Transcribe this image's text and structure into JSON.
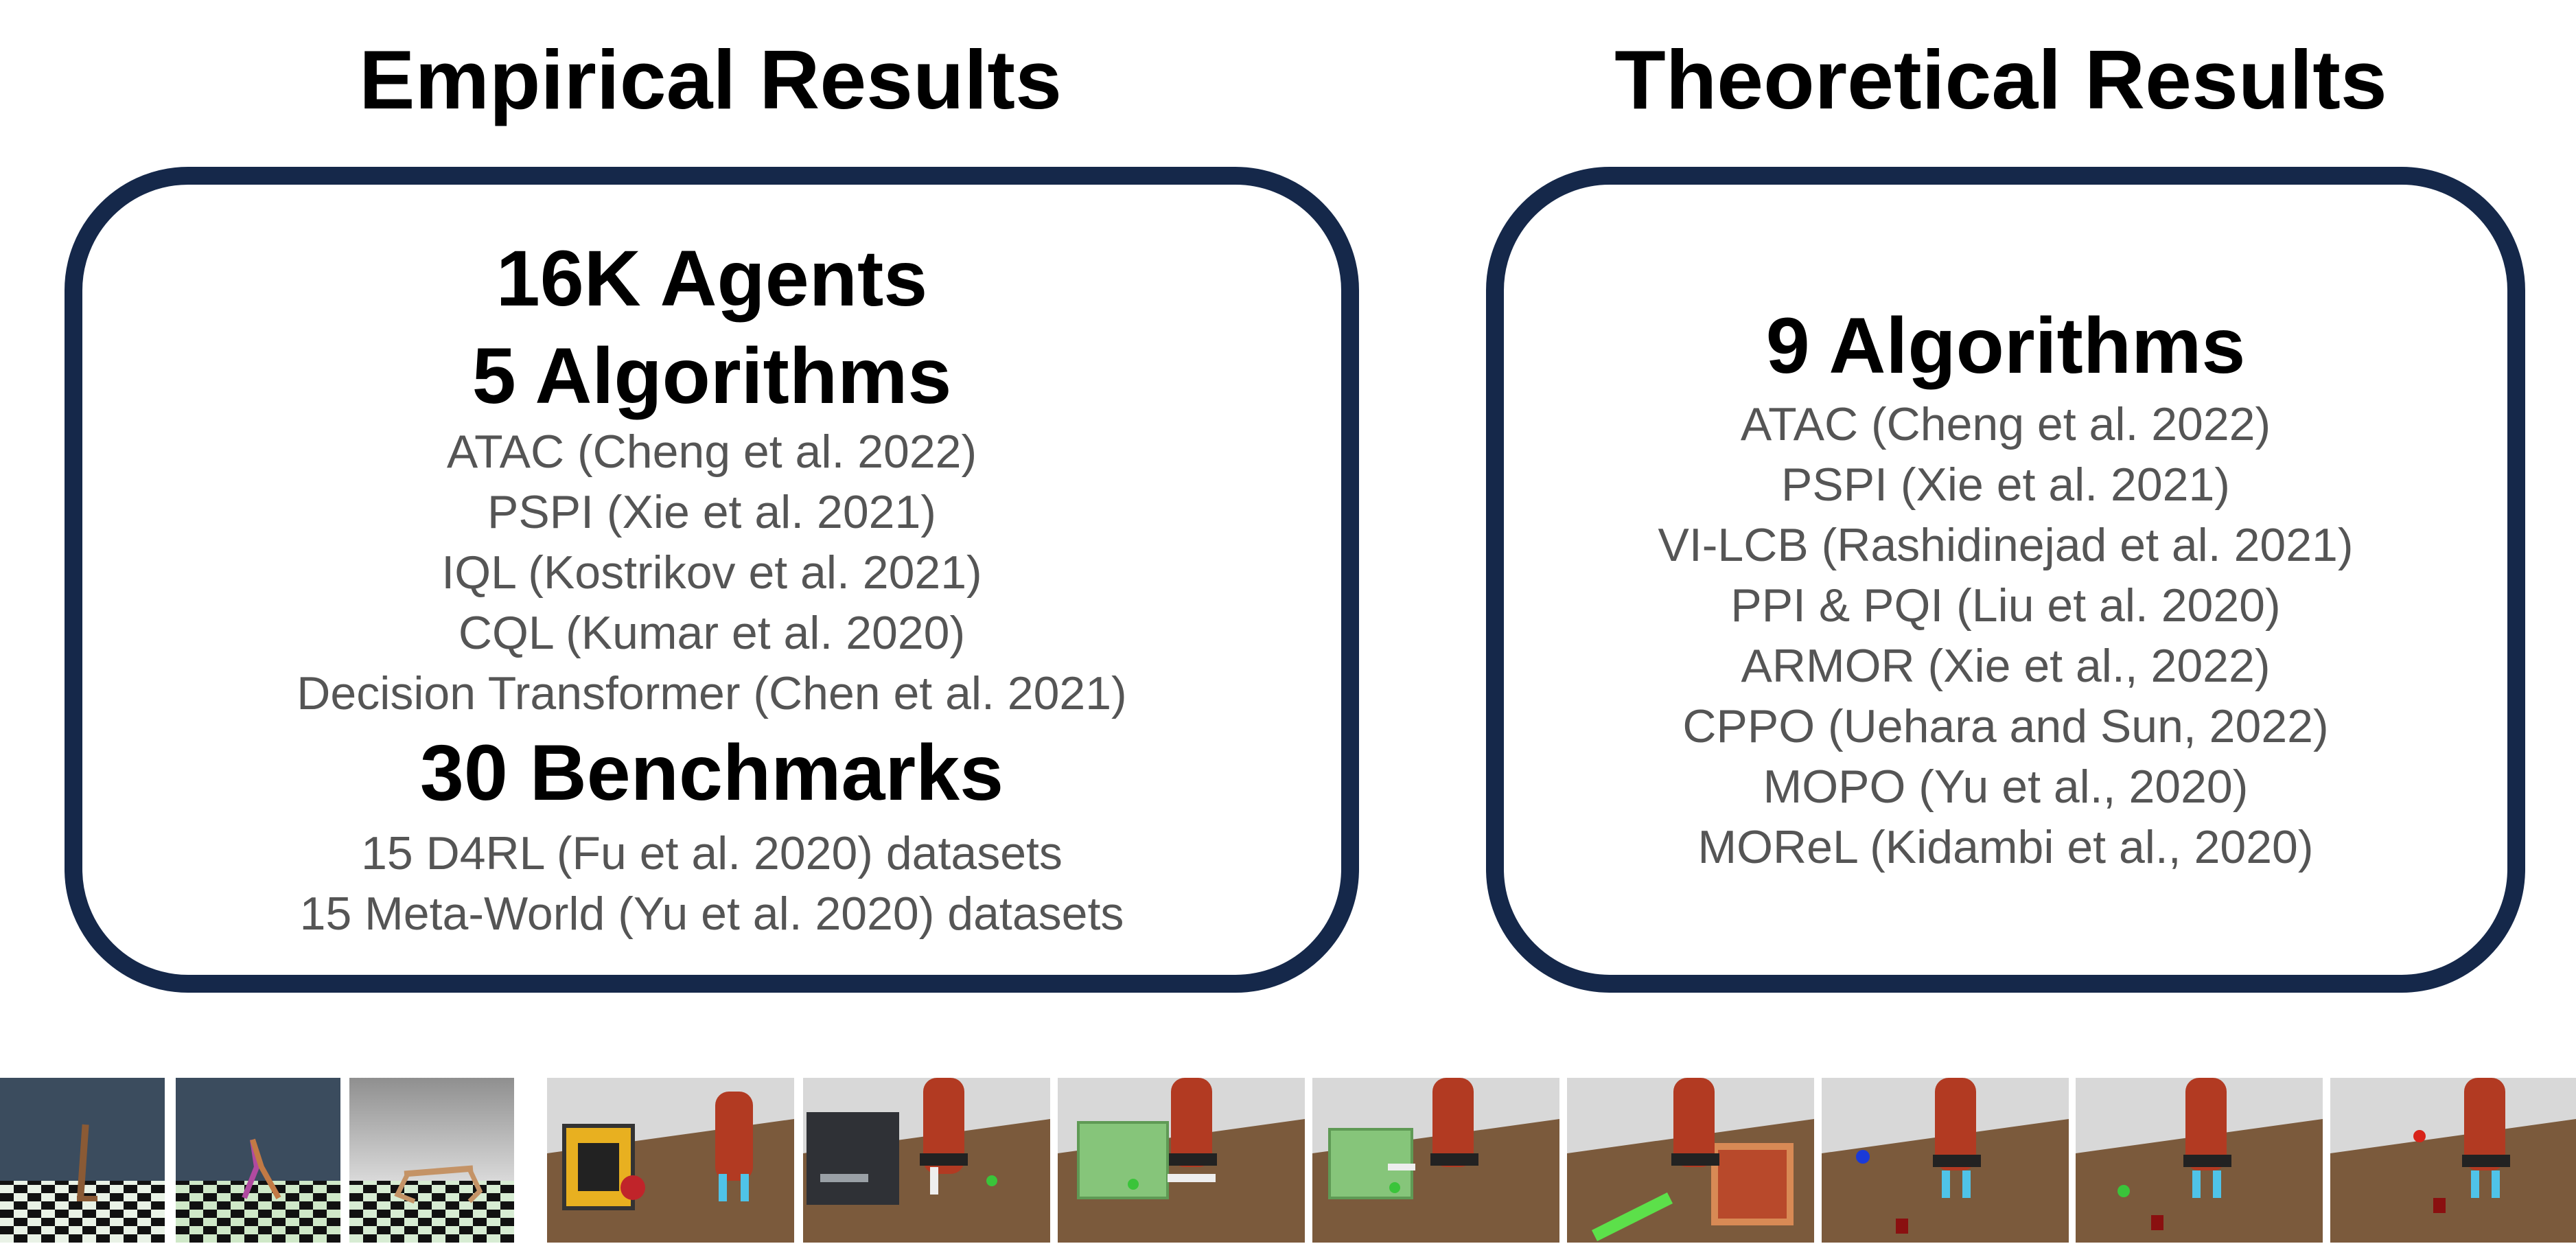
{
  "empirical": {
    "title": "Empirical Results",
    "agents": "16K Agents",
    "algorithms_title": "5 Algorithms",
    "algorithms": [
      "ATAC (Cheng et al. 2022)",
      "PSPI (Xie et al. 2021)",
      "IQL (Kostrikov et al. 2021)",
      "CQL (Kumar et al. 2020)",
      "Decision Transformer (Chen et al. 2021)"
    ],
    "benchmarks_title": "30 Benchmarks",
    "benchmarks": [
      "15 D4RL (Fu et al. 2020) datasets",
      "15 Meta-World (Yu et al. 2020) datasets"
    ]
  },
  "theoretical": {
    "title": "Theoretical Results",
    "algorithms_title": "9 Algorithms",
    "algorithms": [
      "ATAC (Cheng et al. 2022)",
      "PSPI (Xie et al. 2021)",
      "VI-LCB (Rashidinejad et al. 2021)",
      "PPI & PQI (Liu et al. 2020)",
      "ARMOR (Xie et al., 2022)",
      "CPPO (Uehara and Sun, 2022)",
      "MOPO (Yu et al., 2020)",
      "MOReL (Kidambi et al., 2020)"
    ]
  },
  "colors": {
    "panel_border": "#15284a",
    "heading_text": "#000000",
    "item_text": "#555555"
  }
}
